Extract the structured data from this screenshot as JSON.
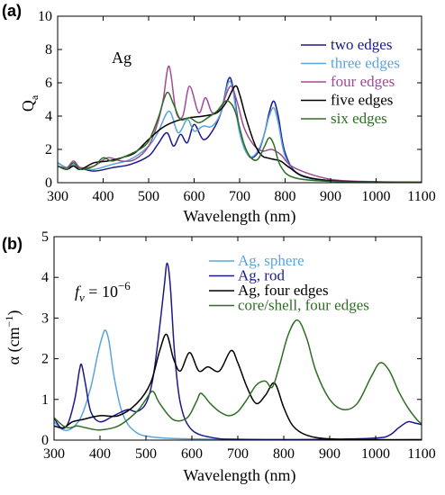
{
  "colors": {
    "navy": "#1a1a8c",
    "light_blue": "#5aa5dc",
    "purple": "#a04a96",
    "black": "#000000",
    "green": "#2e6e24"
  },
  "chart_data": [
    {
      "type": "line",
      "panel_label": "(a)",
      "annotation": "Ag",
      "xlabel": "Wavelength (nm)",
      "ylabel_main": "Q",
      "ylabel_sub": "a",
      "xlim": [
        300,
        1100
      ],
      "ylim": [
        0,
        10
      ],
      "xticks": [
        "300",
        "400",
        "500",
        "600",
        "700",
        "800",
        "900",
        "1000",
        "1100"
      ],
      "yticks": [
        "0",
        "2",
        "4",
        "6",
        "8",
        "10"
      ],
      "legend_position": "top-right",
      "series": [
        {
          "name": "two edges",
          "color": "#1a1a8c",
          "x": [
            300,
            320,
            335,
            350,
            380,
            420,
            460,
            500,
            520,
            540,
            555,
            570,
            585,
            600,
            620,
            640,
            660,
            675,
            685,
            700,
            720,
            740,
            755,
            765,
            775,
            785,
            800,
            830,
            900,
            1000,
            1100
          ],
          "y": [
            1.2,
            0.9,
            1.1,
            0.9,
            0.7,
            0.9,
            1.1,
            1.6,
            2.3,
            3.0,
            2.2,
            2.9,
            2.4,
            3.5,
            2.6,
            3.1,
            4.3,
            6.2,
            5.8,
            3.2,
            1.6,
            1.8,
            3.0,
            4.2,
            4.9,
            4.0,
            1.8,
            0.5,
            0.12,
            0.05,
            0.03
          ]
        },
        {
          "name": "three edges",
          "color": "#5aa5dc",
          "x": [
            300,
            320,
            335,
            350,
            380,
            420,
            460,
            500,
            520,
            545,
            565,
            585,
            600,
            620,
            640,
            660,
            675,
            685,
            700,
            720,
            740,
            755,
            765,
            775,
            785,
            800,
            830,
            900,
            1000,
            1100
          ],
          "y": [
            1.2,
            0.9,
            1.1,
            0.9,
            0.8,
            1.1,
            1.4,
            2.2,
            3.0,
            4.3,
            3.0,
            3.8,
            3.1,
            3.4,
            3.4,
            4.3,
            6.0,
            5.6,
            3.0,
            1.6,
            1.9,
            3.0,
            4.0,
            4.5,
            3.6,
            1.6,
            0.5,
            0.12,
            0.05,
            0.03
          ]
        },
        {
          "name": "four edges",
          "color": "#a04a96",
          "x": [
            300,
            320,
            335,
            350,
            380,
            410,
            440,
            470,
            500,
            520,
            532,
            545,
            560,
            575,
            590,
            610,
            625,
            640,
            660,
            680,
            695,
            710,
            730,
            750,
            770,
            790,
            820,
            900,
            1000,
            1100
          ],
          "y": [
            1.0,
            0.9,
            1.3,
            0.9,
            1.0,
            1.5,
            1.3,
            1.4,
            2.2,
            3.6,
            5.0,
            7.0,
            4.3,
            4.0,
            5.8,
            4.2,
            5.1,
            4.2,
            4.6,
            5.8,
            4.8,
            3.3,
            2.3,
            1.9,
            2.0,
            1.7,
            0.9,
            0.2,
            0.06,
            0.03
          ]
        },
        {
          "name": "five edges",
          "color": "#000000",
          "x": [
            300,
            320,
            335,
            350,
            380,
            410,
            440,
            470,
            500,
            530,
            560,
            590,
            620,
            650,
            670,
            690,
            700,
            715,
            735,
            750,
            760,
            775,
            790,
            810,
            840,
            900,
            1000,
            1100
          ],
          "y": [
            1.0,
            0.8,
            1.0,
            0.8,
            1.2,
            1.3,
            1.5,
            1.8,
            2.6,
            3.3,
            3.7,
            3.9,
            4.0,
            4.2,
            4.8,
            5.8,
            5.3,
            3.8,
            2.2,
            1.6,
            1.5,
            1.4,
            1.3,
            0.9,
            0.4,
            0.12,
            0.04,
            0.02
          ]
        },
        {
          "name": "six edges",
          "color": "#2e6e24",
          "x": [
            300,
            320,
            335,
            350,
            380,
            400,
            420,
            450,
            480,
            500,
            520,
            540,
            555,
            570,
            590,
            610,
            630,
            650,
            665,
            675,
            690,
            710,
            725,
            740,
            755,
            765,
            775,
            790,
            820,
            900,
            1000,
            1100
          ],
          "y": [
            1.0,
            0.8,
            1.2,
            0.8,
            1.0,
            1.5,
            1.3,
            1.6,
            2.0,
            2.5,
            3.8,
            5.4,
            4.7,
            3.8,
            3.9,
            3.6,
            3.9,
            4.3,
            4.8,
            4.9,
            4.3,
            2.3,
            1.5,
            1.4,
            2.2,
            2.7,
            2.3,
            1.0,
            0.3,
            0.08,
            0.03,
            0.02
          ]
        }
      ]
    },
    {
      "type": "line",
      "panel_label": "(b)",
      "annotation_main": "f",
      "annotation_sub": "v",
      "annotation_rest": " = 10",
      "annotation_exp": "−6",
      "xlabel": "Wavelength (nm)",
      "ylabel_main": "α (cm",
      "ylabel_exp": "−1",
      "ylabel_end": ")",
      "xlim": [
        300,
        1100
      ],
      "ylim": [
        0,
        5
      ],
      "xticks": [
        "300",
        "400",
        "500",
        "600",
        "700",
        "800",
        "900",
        "1000",
        "1100"
      ],
      "yticks": [
        "0",
        "1",
        "2",
        "3",
        "4",
        "5"
      ],
      "legend_position": "top-right",
      "series": [
        {
          "name": "Ag, sphere",
          "color": "#5aa5dc",
          "x": [
            300,
            320,
            340,
            360,
            380,
            395,
            405,
            412,
            420,
            430,
            445,
            460,
            480,
            500,
            540,
            600,
            700,
            900,
            1100
          ],
          "y": [
            0.45,
            0.25,
            0.3,
            0.6,
            1.3,
            2.1,
            2.55,
            2.7,
            2.4,
            1.6,
            0.8,
            0.4,
            0.18,
            0.1,
            0.05,
            0.03,
            0.02,
            0.01,
            0.01
          ]
        },
        {
          "name": "Ag, rod",
          "color": "#1a1a8c",
          "x": [
            300,
            315,
            330,
            345,
            355,
            360,
            368,
            380,
            400,
            430,
            460,
            480,
            500,
            515,
            528,
            540,
            546,
            553,
            562,
            575,
            600,
            650,
            700,
            800,
            900,
            1000,
            1030,
            1050,
            1070,
            1085,
            1100
          ],
          "y": [
            0.55,
            0.3,
            0.4,
            1.0,
            1.7,
            1.85,
            1.4,
            0.7,
            0.45,
            0.6,
            0.75,
            0.7,
            0.9,
            1.5,
            2.6,
            3.8,
            4.35,
            3.8,
            2.2,
            0.9,
            0.25,
            0.05,
            0.02,
            0.01,
            0.02,
            0.05,
            0.12,
            0.3,
            0.45,
            0.42,
            0.38
          ]
        },
        {
          "name": "Ag, four edges",
          "color": "#000000",
          "x": [
            300,
            320,
            340,
            360,
            400,
            440,
            480,
            510,
            530,
            545,
            560,
            575,
            595,
            615,
            635,
            660,
            685,
            700,
            720,
            740,
            760,
            780,
            800,
            820,
            850,
            900,
            1000,
            1100
          ],
          "y": [
            0.35,
            0.3,
            0.45,
            0.5,
            0.6,
            0.6,
            0.9,
            1.4,
            2.2,
            2.6,
            2.0,
            1.7,
            2.15,
            1.7,
            1.8,
            1.7,
            2.2,
            1.9,
            1.3,
            0.9,
            1.1,
            1.4,
            0.8,
            0.35,
            0.12,
            0.03,
            0.01,
            0.01
          ]
        },
        {
          "name": "core/shell, four edges",
          "color": "#2e6e24",
          "x": [
            300,
            320,
            335,
            350,
            370,
            400,
            440,
            480,
            500,
            515,
            530,
            560,
            590,
            610,
            620,
            640,
            660,
            680,
            700,
            720,
            740,
            760,
            775,
            790,
            810,
            830,
            850,
            870,
            900,
            930,
            960,
            990,
            1010,
            1030,
            1050,
            1070,
            1090,
            1100
          ],
          "y": [
            0.55,
            0.35,
            0.3,
            0.35,
            0.3,
            0.25,
            0.35,
            0.7,
            1.0,
            1.2,
            0.9,
            0.5,
            0.55,
            0.95,
            1.15,
            0.9,
            0.7,
            0.6,
            0.7,
            1.0,
            1.35,
            1.45,
            1.3,
            1.8,
            2.6,
            2.95,
            2.5,
            1.7,
            1.0,
            0.75,
            0.9,
            1.55,
            1.9,
            1.7,
            1.2,
            0.8,
            0.5,
            0.4
          ]
        }
      ]
    }
  ]
}
